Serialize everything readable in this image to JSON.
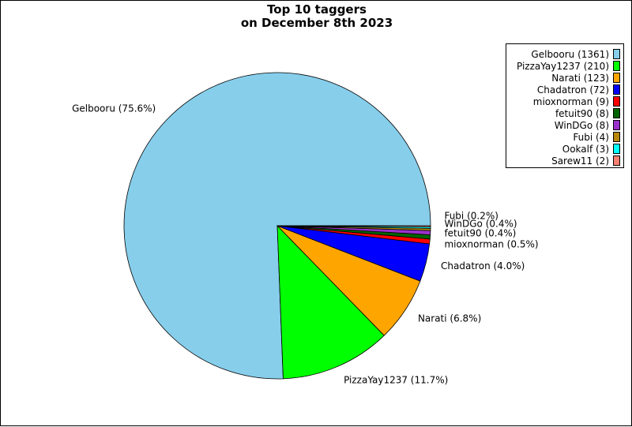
{
  "chart_data": {
    "type": "pie",
    "title": [
      "Top 10 taggers",
      "on December 8th 2023"
    ],
    "slices": [
      {
        "name": "Gelbooru",
        "value": 1361,
        "color": "#87ceeb",
        "legend": "Gelbooru (1361)",
        "label": "Gelbooru (75.6%)"
      },
      {
        "name": "PizzaYay1237",
        "value": 210,
        "color": "#00ff00",
        "legend": "PizzaYay1237 (210)",
        "label": "PizzaYay1237 (11.7%)"
      },
      {
        "name": "Narati",
        "value": 123,
        "color": "#ffa500",
        "legend": "Narati (123)",
        "label": "Narati (6.8%)"
      },
      {
        "name": "Chadatron",
        "value": 72,
        "color": "#0000ff",
        "legend": "Chadatron (72)",
        "label": "Chadatron (4.0%)"
      },
      {
        "name": "mioxnorman",
        "value": 9,
        "color": "#ff0000",
        "legend": "mioxnorman (9)",
        "label": "mioxnorman (0.5%)"
      },
      {
        "name": "fetuit90",
        "value": 8,
        "color": "#006400",
        "legend": "fetuit90 (8)",
        "label": "fetuit90 (0.4%)"
      },
      {
        "name": "WinDGo",
        "value": 8,
        "color": "#9932cc",
        "legend": "WinDGo (8)",
        "label": "WinDGo (0.4%)"
      },
      {
        "name": "Fubi",
        "value": 4,
        "color": "#b8860b",
        "legend": "Fubi (4)",
        "label": "Fubi (0.2%)"
      },
      {
        "name": "Ookalf",
        "value": 3,
        "color": "#00ffff",
        "legend": "Ookalf (3)",
        "label": ""
      },
      {
        "name": "Sarew11",
        "value": 2,
        "color": "#fa8072",
        "legend": "Sarew11 (2)",
        "label": ""
      }
    ],
    "legend_position": "top-right",
    "direction": "clockwise from 3 o'clock (0°), Gelbooru counter-clockwise"
  }
}
